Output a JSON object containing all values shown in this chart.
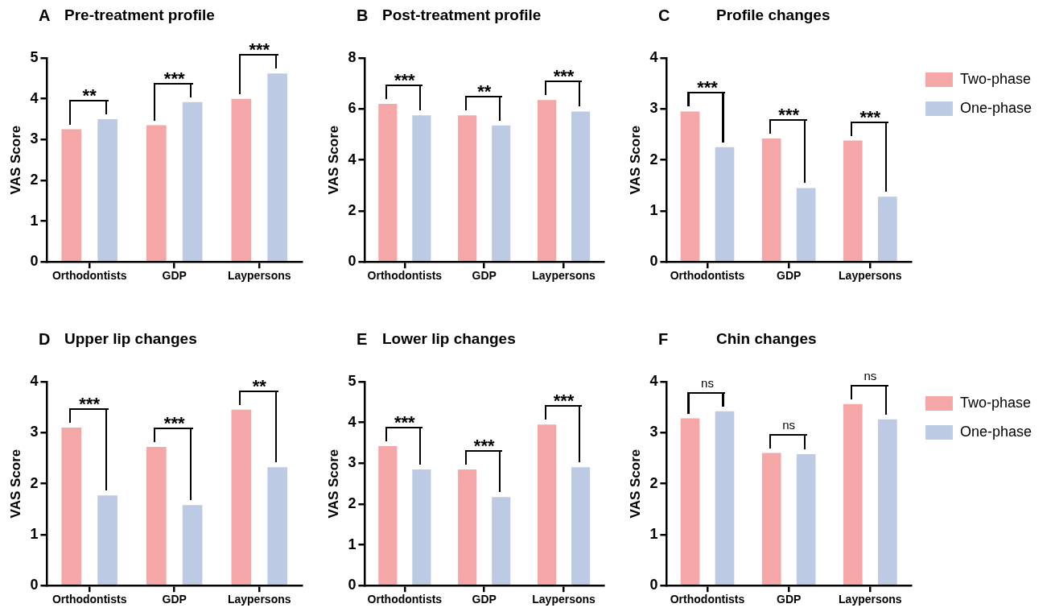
{
  "chart_data": [
    {
      "type": "bar",
      "title": "Pre-treatment profile",
      "ylabel": "VAS Score",
      "categories": [
        "Orthodontists",
        "GDP",
        "Laypersons"
      ],
      "series": [
        {
          "color": "#f4a7a6",
          "values": [
            3.25,
            3.35,
            4.0
          ]
        },
        {
          "color": "#bccbe3",
          "values": [
            3.5,
            3.92,
            4.62
          ]
        }
      ],
      "ylim": [
        0,
        5
      ],
      "yticks": [
        0,
        1,
        2,
        3,
        4,
        5
      ],
      "grid": false,
      "legend": false,
      "annotations": [
        "A",
        "**",
        "***",
        "***"
      ]
    },
    {
      "type": "bar",
      "title": "Post-treatment profile",
      "ylabel": "VAS Score",
      "categories": [
        "Orthodontists",
        "GDP",
        "Laypersons"
      ],
      "series": [
        {
          "color": "#f4a7a6",
          "values": [
            6.2,
            5.75,
            6.35
          ]
        },
        {
          "color": "#bccbe3",
          "values": [
            5.75,
            5.35,
            5.9
          ]
        }
      ],
      "ylim": [
        0,
        8
      ],
      "yticks": [
        0,
        2,
        4,
        6,
        8
      ],
      "grid": false,
      "legend": false,
      "annotations": [
        "B",
        "***",
        "**",
        "***"
      ]
    },
    {
      "type": "bar",
      "title": "Profile changes",
      "ylabel": "VAS Score",
      "categories": [
        "Orthodontists",
        "GDP",
        "Laypersons"
      ],
      "series": [
        {
          "name": "Two-phase",
          "color": "#f4a7a6",
          "values": [
            2.95,
            2.42,
            2.38
          ]
        },
        {
          "name": "One-phase",
          "color": "#bccbe3",
          "values": [
            2.25,
            1.45,
            1.28
          ]
        }
      ],
      "ylim": [
        0,
        4
      ],
      "yticks": [
        0,
        1,
        2,
        3,
        4
      ],
      "grid": false,
      "legend": "right",
      "annotations": [
        "C",
        "***",
        "***",
        "***"
      ]
    },
    {
      "type": "bar",
      "title": "Upper lip changes",
      "ylabel": "VAS Score",
      "categories": [
        "Orthodontists",
        "GDP",
        "Laypersons"
      ],
      "series": [
        {
          "color": "#f4a7a6",
          "values": [
            3.1,
            2.72,
            3.45
          ]
        },
        {
          "color": "#bccbe3",
          "values": [
            1.77,
            1.58,
            2.32
          ]
        }
      ],
      "ylim": [
        0,
        4
      ],
      "yticks": [
        0,
        1,
        2,
        3,
        4
      ],
      "grid": false,
      "legend": false,
      "annotations": [
        "D",
        "***",
        "***",
        "**"
      ]
    },
    {
      "type": "bar",
      "title": "Lower lip changes",
      "ylabel": "VAS Score",
      "categories": [
        "Orthodontists",
        "GDP",
        "Laypersons"
      ],
      "series": [
        {
          "color": "#f4a7a6",
          "values": [
            3.42,
            2.85,
            3.95
          ]
        },
        {
          "color": "#bccbe3",
          "values": [
            2.85,
            2.17,
            2.9
          ]
        }
      ],
      "ylim": [
        0,
        5
      ],
      "yticks": [
        0,
        1,
        2,
        3,
        4,
        5
      ],
      "grid": false,
      "legend": false,
      "annotations": [
        "E",
        "***",
        "***",
        "***"
      ]
    },
    {
      "type": "bar",
      "title": "Chin changes",
      "ylabel": "VAS Score",
      "categories": [
        "Orthodontists",
        "GDP",
        "Laypersons"
      ],
      "series": [
        {
          "name": "Two-phase",
          "color": "#f4a7a6",
          "values": [
            3.28,
            2.6,
            3.56
          ]
        },
        {
          "name": "One-phase",
          "color": "#bccbe3",
          "values": [
            3.42,
            2.58,
            3.26
          ]
        }
      ],
      "ylim": [
        0,
        4
      ],
      "yticks": [
        0,
        1,
        2,
        3,
        4
      ],
      "grid": false,
      "legend": "right",
      "annotations": [
        "F",
        "ns",
        "ns",
        "ns"
      ]
    }
  ]
}
